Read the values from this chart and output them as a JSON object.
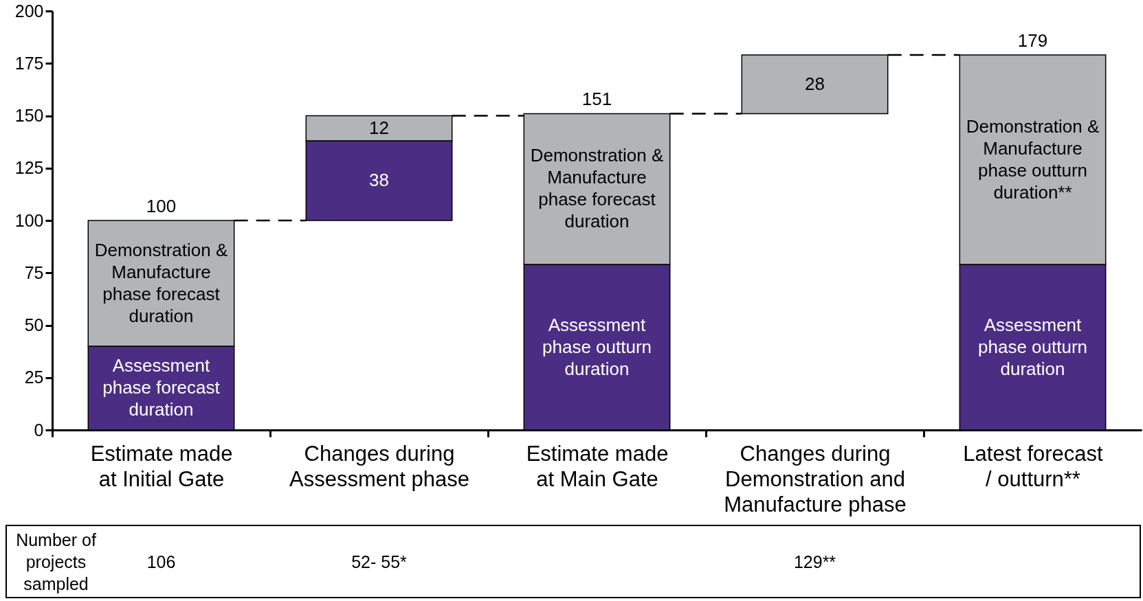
{
  "chart_data": {
    "type": "bar",
    "categories": [
      "Estimate made at Initial Gate",
      "Changes during Assessment phase",
      "Estimate made at Main Gate",
      "Changes during Demonstration and Manufacture phase",
      "Latest forecast / outturn**"
    ],
    "series": [
      {
        "color": "#4b2e83",
        "base": [
          0,
          100,
          0,
          null,
          0
        ],
        "values": [
          40,
          38,
          79,
          null,
          79
        ],
        "value_labels": [
          "Assessment phase forecast duration",
          "38",
          "Assessment phase outturn duration",
          null,
          "Assessment phase outturn duration"
        ]
      },
      {
        "color": "#b2b4b7",
        "base": [
          40,
          138,
          79,
          151,
          79
        ],
        "values": [
          60,
          12,
          72,
          28,
          100
        ],
        "value_labels": [
          "Demonstration & Manufacture phase forecast duration",
          "12",
          "Demonstration & Manufacture phase forecast duration",
          "28",
          "Demonstration & Manufacture phase outturn duration**"
        ]
      }
    ],
    "totals": [
      "100",
      null,
      "151",
      null,
      "179"
    ],
    "ylim": [
      0,
      200
    ],
    "yticks": [
      0,
      25,
      50,
      75,
      100,
      125,
      150,
      175,
      200
    ],
    "annotations": [
      "Number of projects sampled",
      "106",
      "52- 55*",
      "129**"
    ]
  }
}
